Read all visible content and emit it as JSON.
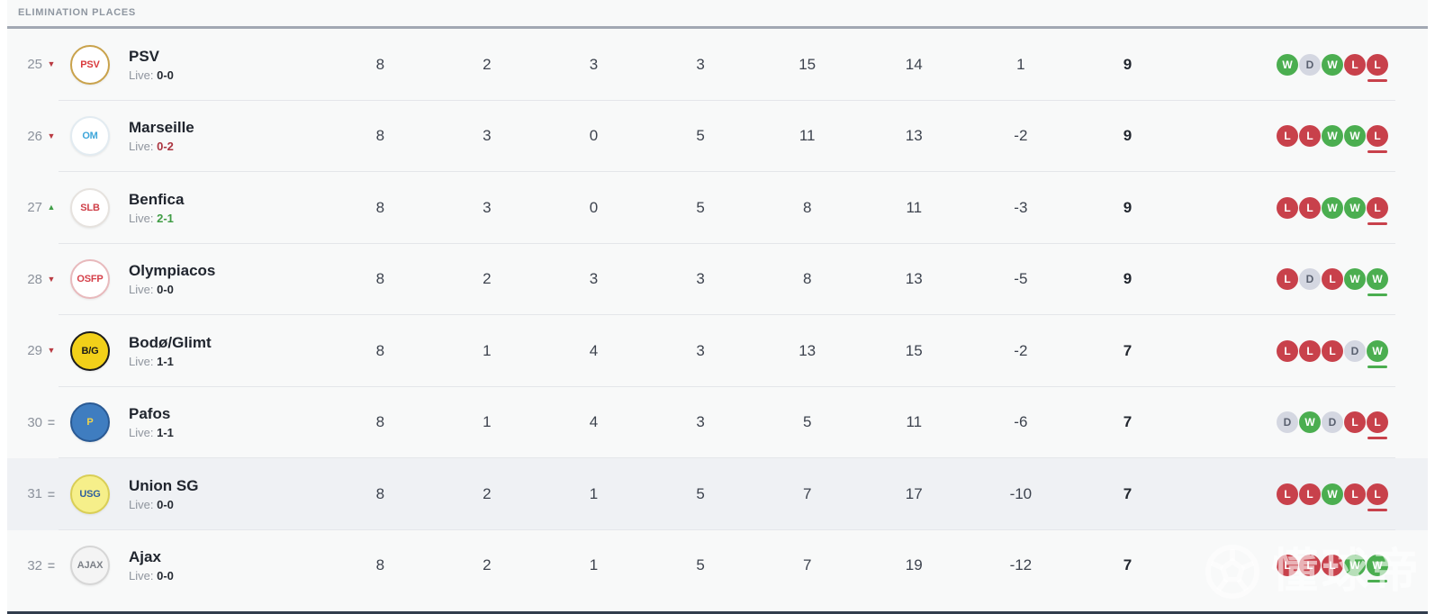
{
  "header": {
    "title": "ELIMINATION PLACES"
  },
  "table": {
    "stat_keys": [
      "played",
      "wins",
      "draws",
      "losses",
      "gf",
      "ga",
      "gd",
      "pts"
    ],
    "rows": [
      {
        "rank": "25",
        "movement": "down",
        "team": "PSV",
        "live_label": "Live:",
        "live_score": "0-0",
        "live_state": "neutral",
        "crest": {
          "bg": "#ffffff",
          "fg": "#d93a3c",
          "border": "#c9a24b",
          "label": "PSV"
        },
        "stats": {
          "played": "8",
          "wins": "2",
          "draws": "3",
          "losses": "3",
          "gf": "15",
          "ga": "14",
          "gd": "1",
          "pts": "9"
        },
        "form": [
          "W",
          "D",
          "W",
          "L",
          "L"
        ],
        "highlight": false
      },
      {
        "rank": "26",
        "movement": "down",
        "team": "Marseille",
        "live_label": "Live:",
        "live_score": "0-2",
        "live_state": "losing",
        "crest": {
          "bg": "#ffffff",
          "fg": "#3ea6da",
          "border": "#e2ebf1",
          "label": "OM"
        },
        "stats": {
          "played": "8",
          "wins": "3",
          "draws": "0",
          "losses": "5",
          "gf": "11",
          "ga": "13",
          "gd": "-2",
          "pts": "9"
        },
        "form": [
          "L",
          "L",
          "W",
          "W",
          "L"
        ],
        "highlight": false
      },
      {
        "rank": "27",
        "movement": "up",
        "team": "Benfica",
        "live_label": "Live:",
        "live_score": "2-1",
        "live_state": "winning",
        "crest": {
          "bg": "#ffffff",
          "fg": "#cf4049",
          "border": "#e6e2de",
          "label": "SLB"
        },
        "stats": {
          "played": "8",
          "wins": "3",
          "draws": "0",
          "losses": "5",
          "gf": "8",
          "ga": "11",
          "gd": "-3",
          "pts": "9"
        },
        "form": [
          "L",
          "L",
          "W",
          "W",
          "L"
        ],
        "highlight": false
      },
      {
        "rank": "28",
        "movement": "down",
        "team": "Olympiacos",
        "live_label": "Live:",
        "live_score": "0-0",
        "live_state": "neutral",
        "crest": {
          "bg": "#ffffff",
          "fg": "#d5404a",
          "border": "#e8b9bc",
          "label": "OSFP"
        },
        "stats": {
          "played": "8",
          "wins": "2",
          "draws": "3",
          "losses": "3",
          "gf": "8",
          "ga": "13",
          "gd": "-5",
          "pts": "9"
        },
        "form": [
          "L",
          "D",
          "L",
          "W",
          "W"
        ],
        "highlight": false
      },
      {
        "rank": "29",
        "movement": "down",
        "team": "Bodø/Glimt",
        "live_label": "Live:",
        "live_score": "1-1",
        "live_state": "neutral",
        "crest": {
          "bg": "#f2d019",
          "fg": "#191919",
          "border": "#1b1b1b",
          "label": "B/G"
        },
        "stats": {
          "played": "8",
          "wins": "1",
          "draws": "4",
          "losses": "3",
          "gf": "13",
          "ga": "15",
          "gd": "-2",
          "pts": "7"
        },
        "form": [
          "L",
          "L",
          "L",
          "D",
          "W"
        ],
        "highlight": false
      },
      {
        "rank": "30",
        "movement": "equal",
        "team": "Pafos",
        "live_label": "Live:",
        "live_score": "1-1",
        "live_state": "neutral",
        "crest": {
          "bg": "#3f7dc0",
          "fg": "#f2d54a",
          "border": "#2a5a94",
          "label": "P"
        },
        "stats": {
          "played": "8",
          "wins": "1",
          "draws": "4",
          "losses": "3",
          "gf": "5",
          "ga": "11",
          "gd": "-6",
          "pts": "7"
        },
        "form": [
          "D",
          "W",
          "D",
          "L",
          "L"
        ],
        "highlight": false
      },
      {
        "rank": "31",
        "movement": "equal",
        "team": "Union SG",
        "live_label": "Live:",
        "live_score": "0-0",
        "live_state": "neutral",
        "crest": {
          "bg": "#f6ef8a",
          "fg": "#2f5f9e",
          "border": "#d9ce55",
          "label": "USG"
        },
        "stats": {
          "played": "8",
          "wins": "2",
          "draws": "1",
          "losses": "5",
          "gf": "7",
          "ga": "17",
          "gd": "-10",
          "pts": "7"
        },
        "form": [
          "L",
          "L",
          "W",
          "L",
          "L"
        ],
        "highlight": true
      },
      {
        "rank": "32",
        "movement": "equal",
        "team": "Ajax",
        "live_label": "Live:",
        "live_score": "0-0",
        "live_state": "neutral",
        "crest": {
          "bg": "#f4f4f4",
          "fg": "#7c8087",
          "border": "#d6d6d6",
          "label": "AJAX"
        },
        "stats": {
          "played": "8",
          "wins": "2",
          "draws": "1",
          "losses": "5",
          "gf": "7",
          "ga": "19",
          "gd": "-12",
          "pts": "7"
        },
        "form": [
          "L",
          "L",
          "L",
          "W",
          "W"
        ],
        "highlight": false
      }
    ]
  },
  "form_colors": {
    "win": "#4bae50",
    "draw": "#d4d7e1",
    "loss": "#c8414b"
  },
  "watermark": {
    "text": "懂球帝",
    "icon": "soccer-ball"
  }
}
